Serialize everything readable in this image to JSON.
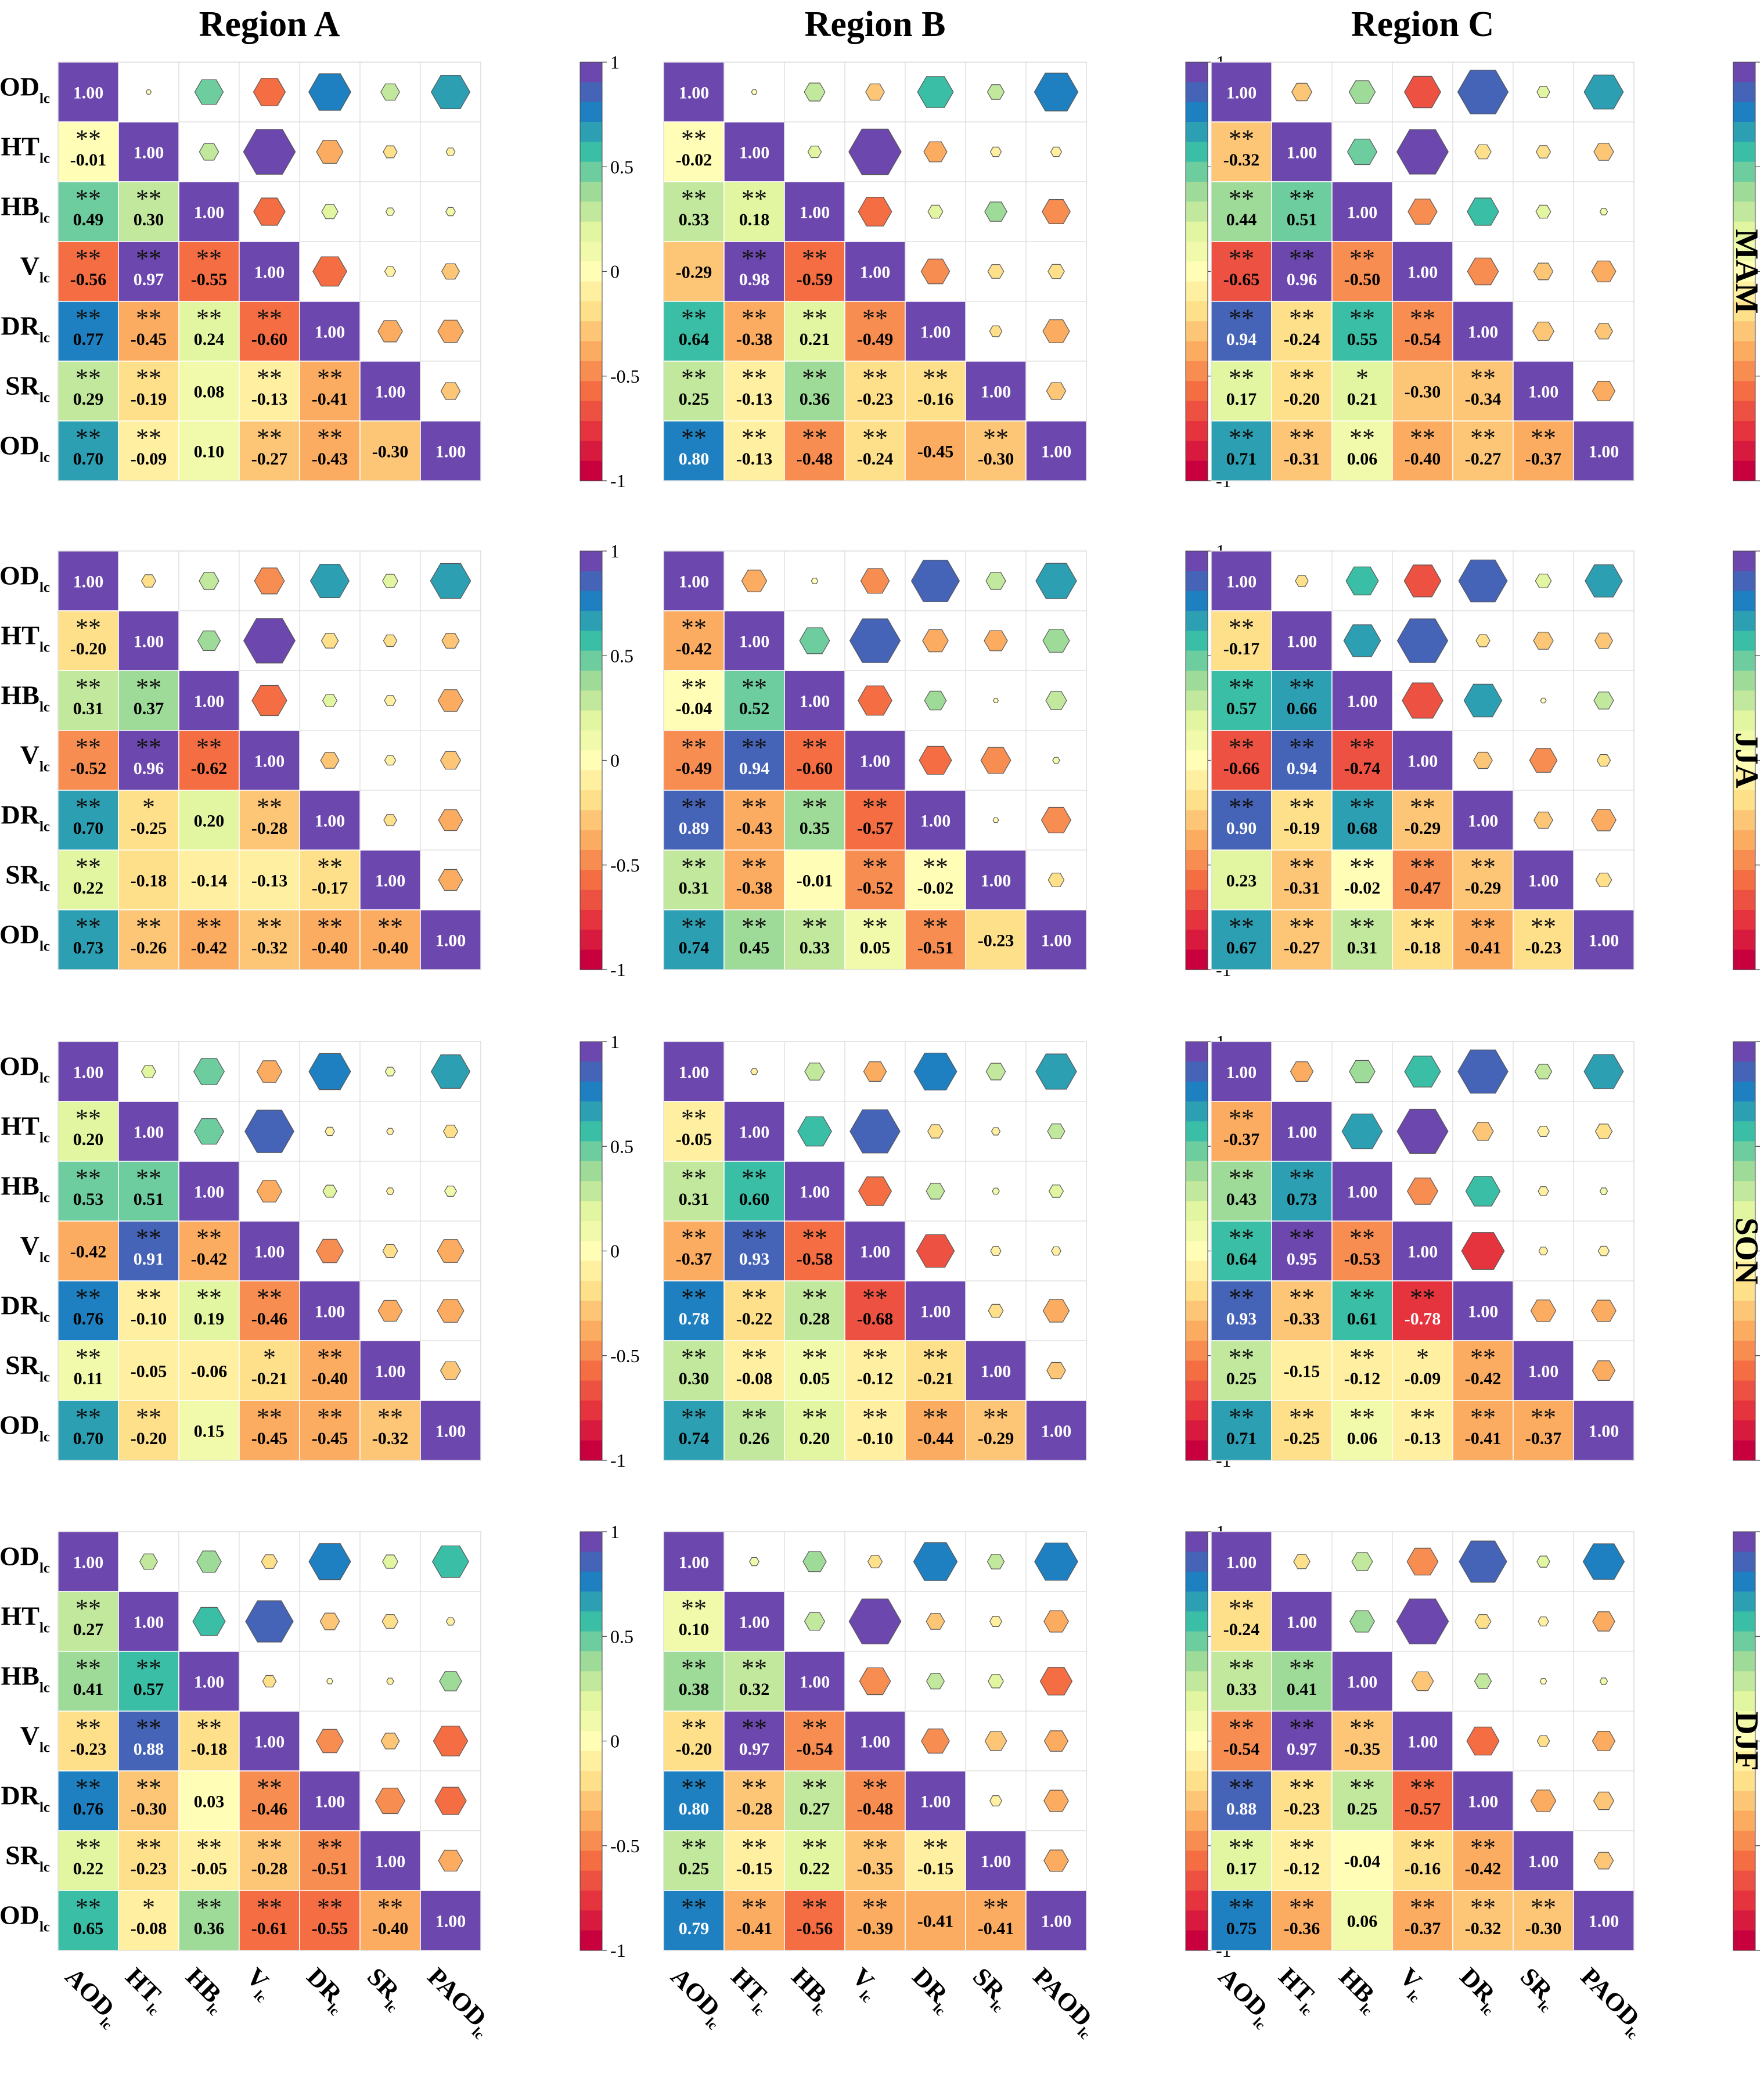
{
  "chart_data": {
    "type": "heatmap",
    "style": "lower-triangle values with significance stars; upper-triangle hexagons sized by |r|; diagonal 1.00",
    "colormap": "Spectral (red -1 to purple +1), 21 discrete levels",
    "colorbar_ticks": [
      1,
      0.5,
      0,
      -0.5,
      -1
    ],
    "colorbar_tick_labels": [
      "1",
      "0.5",
      "0",
      "-0.5",
      "-1"
    ],
    "colors": {
      "neg_end": "#C8003E",
      "mid": "#FFFDB6",
      "pos_end": "#6C47AD"
    },
    "vars": [
      {
        "base": "AOD",
        "sub": "lc"
      },
      {
        "base": "HT",
        "sub": "lc"
      },
      {
        "base": "HB",
        "sub": "lc"
      },
      {
        "base": "V",
        "sub": "lc"
      },
      {
        "base": "DR",
        "sub": "lc"
      },
      {
        "base": "SR",
        "sub": "lc"
      },
      {
        "base": "PAOD",
        "sub": "lc"
      }
    ],
    "regions": [
      "Region  A",
      "Region  B",
      "Region  C"
    ],
    "seasons": [
      "MAM",
      "JJA",
      "SON",
      "DJF"
    ],
    "panels": [
      {
        "region": "Region  A",
        "season": "MAM",
        "values": [
          [
            -0.01
          ],
          [
            0.49,
            0.3
          ],
          [
            -0.56,
            0.97,
            -0.55
          ],
          [
            0.77,
            -0.45,
            0.24,
            -0.6
          ],
          [
            0.29,
            -0.19,
            0.08,
            -0.13,
            -0.41
          ],
          [
            0.7,
            -0.09,
            0.1,
            -0.27,
            -0.43,
            -0.3
          ]
        ],
        "stars": [
          [
            2
          ],
          [
            2,
            2
          ],
          [
            2,
            2,
            2
          ],
          [
            2,
            2,
            2,
            2
          ],
          [
            2,
            2,
            0,
            2,
            2
          ],
          [
            2,
            2,
            0,
            2,
            2,
            0
          ]
        ]
      },
      {
        "region": "Region  B",
        "season": "MAM",
        "values": [
          [
            -0.02
          ],
          [
            0.33,
            0.18
          ],
          [
            -0.29,
            0.98,
            -0.59
          ],
          [
            0.64,
            -0.38,
            0.21,
            -0.49
          ],
          [
            0.25,
            -0.13,
            0.36,
            -0.23,
            -0.16
          ],
          [
            0.8,
            -0.13,
            -0.48,
            -0.24,
            -0.45,
            -0.3
          ]
        ],
        "stars": [
          [
            2
          ],
          [
            2,
            2
          ],
          [
            0,
            2,
            2
          ],
          [
            2,
            2,
            2,
            2
          ],
          [
            2,
            2,
            2,
            2,
            2
          ],
          [
            2,
            2,
            2,
            2,
            0,
            2
          ]
        ]
      },
      {
        "region": "Region  C",
        "season": "MAM",
        "values": [
          [
            -0.32
          ],
          [
            0.44,
            0.51
          ],
          [
            -0.65,
            0.96,
            -0.5
          ],
          [
            0.94,
            -0.24,
            0.55,
            -0.54
          ],
          [
            0.17,
            -0.2,
            0.21,
            -0.3,
            -0.34
          ],
          [
            0.71,
            -0.31,
            0.06,
            -0.4,
            -0.27,
            -0.37
          ]
        ],
        "stars": [
          [
            2
          ],
          [
            2,
            2
          ],
          [
            2,
            2,
            2
          ],
          [
            2,
            2,
            2,
            2
          ],
          [
            2,
            2,
            1,
            0,
            2
          ],
          [
            2,
            2,
            2,
            2,
            2,
            2
          ]
        ]
      },
      {
        "region": "Region  A",
        "season": "JJA",
        "values": [
          [
            -0.2
          ],
          [
            0.31,
            0.37
          ],
          [
            -0.52,
            0.96,
            -0.62
          ],
          [
            0.7,
            -0.25,
            0.2,
            -0.28
          ],
          [
            0.22,
            -0.18,
            -0.14,
            -0.13,
            -0.17
          ],
          [
            0.73,
            -0.26,
            -0.42,
            -0.32,
            -0.4,
            -0.4
          ]
        ],
        "stars": [
          [
            2
          ],
          [
            2,
            2
          ],
          [
            2,
            2,
            2
          ],
          [
            2,
            1,
            0,
            2
          ],
          [
            2,
            0,
            0,
            0,
            2
          ],
          [
            2,
            2,
            2,
            2,
            2,
            2
          ]
        ]
      },
      {
        "region": "Region  B",
        "season": "JJA",
        "values": [
          [
            -0.42
          ],
          [
            -0.04,
            0.52
          ],
          [
            -0.49,
            0.94,
            -0.6
          ],
          [
            0.89,
            -0.43,
            0.35,
            -0.57
          ],
          [
            0.31,
            -0.38,
            -0.01,
            -0.52,
            -0.02
          ],
          [
            0.74,
            0.45,
            0.33,
            0.05,
            -0.51,
            -0.23
          ]
        ],
        "stars": [
          [
            2
          ],
          [
            2,
            2
          ],
          [
            2,
            2,
            2
          ],
          [
            2,
            2,
            2,
            2
          ],
          [
            2,
            2,
            0,
            2,
            2
          ],
          [
            2,
            2,
            2,
            2,
            2,
            0
          ]
        ]
      },
      {
        "region": "Region  C",
        "season": "JJA",
        "values": [
          [
            -0.17
          ],
          [
            0.57,
            0.66
          ],
          [
            -0.66,
            0.94,
            -0.74
          ],
          [
            0.9,
            -0.19,
            0.68,
            -0.29
          ],
          [
            0.23,
            -0.31,
            -0.02,
            -0.47,
            -0.29
          ],
          [
            0.67,
            -0.27,
            0.31,
            -0.18,
            -0.41,
            -0.23
          ]
        ],
        "stars": [
          [
            2
          ],
          [
            2,
            2
          ],
          [
            2,
            2,
            2
          ],
          [
            2,
            2,
            2,
            2
          ],
          [
            0,
            2,
            2,
            2,
            2
          ],
          [
            2,
            2,
            2,
            2,
            2,
            2
          ]
        ]
      },
      {
        "region": "Region  A",
        "season": "SON",
        "values": [
          [
            0.2
          ],
          [
            0.53,
            0.51
          ],
          [
            -0.42,
            0.91,
            -0.42
          ],
          [
            0.76,
            -0.1,
            0.19,
            -0.46
          ],
          [
            0.11,
            -0.05,
            -0.06,
            -0.21,
            -0.4
          ],
          [
            0.7,
            -0.2,
            0.15,
            -0.45,
            -0.45,
            -0.32
          ]
        ],
        "stars": [
          [
            2
          ],
          [
            2,
            2
          ],
          [
            0,
            2,
            2
          ],
          [
            2,
            2,
            2,
            2
          ],
          [
            2,
            0,
            0,
            1,
            2
          ],
          [
            2,
            2,
            0,
            2,
            2,
            2
          ]
        ]
      },
      {
        "region": "Region  B",
        "season": "SON",
        "values": [
          [
            -0.05
          ],
          [
            0.31,
            0.6
          ],
          [
            -0.37,
            0.93,
            -0.58
          ],
          [
            0.78,
            -0.22,
            0.28,
            -0.68
          ],
          [
            0.3,
            -0.08,
            0.05,
            -0.12,
            -0.21
          ],
          [
            0.74,
            0.26,
            0.2,
            -0.1,
            -0.44,
            -0.29
          ]
        ],
        "stars": [
          [
            2
          ],
          [
            2,
            2
          ],
          [
            2,
            2,
            2
          ],
          [
            2,
            2,
            2,
            2
          ],
          [
            2,
            2,
            2,
            2,
            2
          ],
          [
            2,
            2,
            2,
            2,
            2,
            2
          ]
        ]
      },
      {
        "region": "Region  C",
        "season": "SON",
        "values": [
          [
            -0.37
          ],
          [
            0.43,
            0.73
          ],
          [
            0.64,
            0.95,
            -0.53
          ],
          [
            0.93,
            -0.33,
            0.61,
            -0.78
          ],
          [
            0.25,
            -0.15,
            -0.12,
            -0.09,
            -0.42
          ],
          [
            0.71,
            -0.25,
            0.06,
            -0.13,
            -0.41,
            -0.37
          ]
        ],
        "stars": [
          [
            2
          ],
          [
            2,
            2
          ],
          [
            2,
            2,
            2
          ],
          [
            2,
            2,
            2,
            2
          ],
          [
            2,
            0,
            2,
            1,
            2
          ],
          [
            2,
            2,
            2,
            2,
            2,
            2
          ]
        ]
      },
      {
        "region": "Region  A",
        "season": "DJF",
        "values": [
          [
            0.27
          ],
          [
            0.41,
            0.57
          ],
          [
            -0.23,
            0.88,
            -0.18
          ],
          [
            0.76,
            -0.3,
            0.03,
            -0.46
          ],
          [
            0.22,
            -0.23,
            -0.05,
            -0.28,
            -0.51
          ],
          [
            0.65,
            -0.08,
            0.36,
            -0.61,
            -0.55,
            -0.4
          ]
        ],
        "stars": [
          [
            2
          ],
          [
            2,
            2
          ],
          [
            2,
            2,
            2
          ],
          [
            2,
            2,
            0,
            2
          ],
          [
            2,
            2,
            2,
            2,
            2
          ],
          [
            2,
            1,
            2,
            2,
            2,
            2
          ]
        ]
      },
      {
        "region": "Region  B",
        "season": "DJF",
        "values": [
          [
            0.1
          ],
          [
            0.38,
            0.32
          ],
          [
            -0.2,
            0.97,
            -0.54
          ],
          [
            0.8,
            -0.28,
            0.27,
            -0.48
          ],
          [
            0.25,
            -0.15,
            0.22,
            -0.35,
            -0.15
          ],
          [
            0.79,
            -0.41,
            -0.56,
            -0.39,
            -0.41,
            -0.41
          ]
        ],
        "stars": [
          [
            2
          ],
          [
            2,
            2
          ],
          [
            2,
            2,
            2
          ],
          [
            2,
            2,
            2,
            2
          ],
          [
            2,
            2,
            2,
            2,
            2
          ],
          [
            2,
            2,
            2,
            2,
            0,
            2
          ]
        ]
      },
      {
        "region": "Region  C",
        "season": "DJF",
        "values": [
          [
            -0.24
          ],
          [
            0.33,
            0.41
          ],
          [
            -0.54,
            0.97,
            -0.35
          ],
          [
            0.88,
            -0.23,
            0.25,
            -0.57
          ],
          [
            0.17,
            -0.12,
            -0.04,
            -0.16,
            -0.42
          ],
          [
            0.75,
            -0.36,
            0.06,
            -0.37,
            -0.32,
            -0.3
          ]
        ],
        "stars": [
          [
            2
          ],
          [
            2,
            2
          ],
          [
            2,
            2,
            2
          ],
          [
            2,
            2,
            2,
            2
          ],
          [
            2,
            2,
            0,
            2,
            2
          ],
          [
            2,
            2,
            0,
            2,
            2,
            2
          ]
        ]
      }
    ]
  }
}
